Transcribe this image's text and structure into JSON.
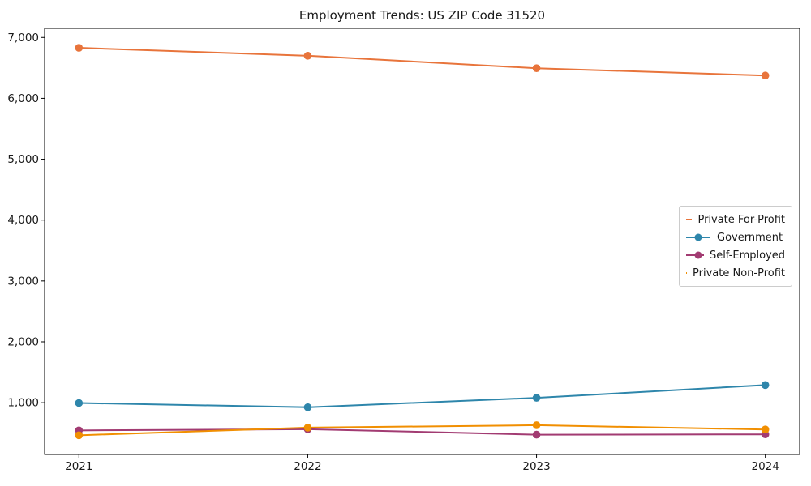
{
  "page": {
    "background_color": "#ffffff"
  },
  "chart_data": {
    "type": "line",
    "title": "Employment Trends: US ZIP Code 31520",
    "xlabel": "",
    "ylabel": "",
    "x": [
      2021,
      2022,
      2023,
      2024
    ],
    "xtick_labels": [
      "2021",
      "2022",
      "2023",
      "2024"
    ],
    "yticks": [
      1000,
      2000,
      3000,
      4000,
      5000,
      6000,
      7000
    ],
    "ytick_labels": [
      "1,000",
      "2,000",
      "3,000",
      "4,000",
      "5,000",
      "6,000",
      "7,000"
    ],
    "xlim": [
      2020.85,
      2024.15
    ],
    "ylim": [
      150,
      7150
    ],
    "grid": false,
    "legend_position": "center right",
    "axis_color": "#000000",
    "text_color": "#1a1a1a",
    "series": [
      {
        "name": "Private For-Profit",
        "color": "#E8743B",
        "values": [
          6830,
          6700,
          6495,
          6375
        ]
      },
      {
        "name": "Government",
        "color": "#2E86AB",
        "values": [
          995,
          925,
          1080,
          1290
        ]
      },
      {
        "name": "Self-Employed",
        "color": "#A23B72",
        "values": [
          545,
          565,
          475,
          480
        ]
      },
      {
        "name": "Private Non-Profit",
        "color": "#F18F01",
        "values": [
          465,
          590,
          630,
          560
        ]
      }
    ]
  }
}
